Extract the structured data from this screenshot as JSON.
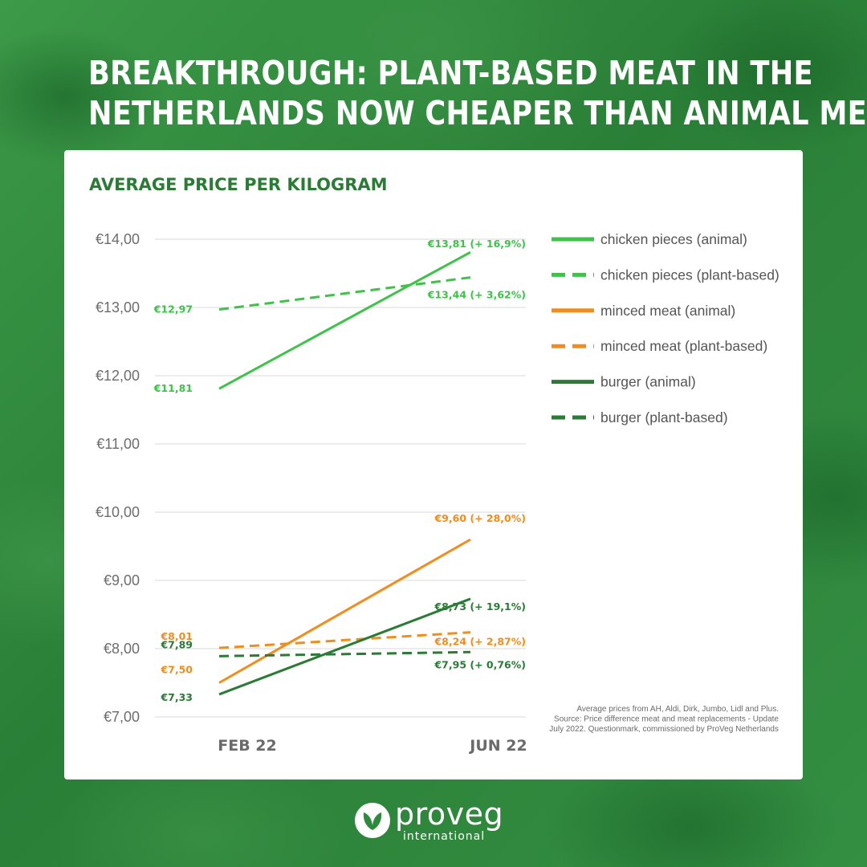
{
  "headline": {
    "line1": "BREAKTHROUGH: PLANT-BASED MEAT IN THE",
    "line2": "NETHERLANDS NOW CHEAPER THAN ANIMAL MEAT"
  },
  "colors": {
    "light_green": "#3ec24a",
    "orange": "#f28c1c",
    "dark_green": "#2b7a35"
  },
  "chart_data": {
    "type": "line",
    "title": "AVERAGE PRICE PER KILOGRAM",
    "categories": [
      "FEB 22",
      "JUN 22"
    ],
    "ylim": [
      7,
      14
    ],
    "yticks": [
      "€7,00",
      "€8,00",
      "€9,00",
      "€10,00",
      "€11,00",
      "€12,00",
      "€13,00",
      "€14,00"
    ],
    "grid": true,
    "legend_position": "right",
    "series": [
      {
        "name": "chicken pieces (animal)",
        "color": "#3ec24a",
        "dashed": false,
        "values": [
          11.81,
          13.81
        ],
        "labels": [
          "€11,81",
          "€13,81 (+ 16,9%)"
        ]
      },
      {
        "name": "chicken pieces (plant-based)",
        "color": "#3ec24a",
        "dashed": true,
        "values": [
          12.97,
          13.44
        ],
        "labels": [
          "€12,97",
          "€13,44 (+ 3,62%)"
        ]
      },
      {
        "name": "minced meat (animal)",
        "color": "#f28c1c",
        "dashed": false,
        "values": [
          7.5,
          9.6
        ],
        "labels": [
          "€7,50",
          "€9,60 (+ 28,0%)"
        ]
      },
      {
        "name": "minced meat (plant-based)",
        "color": "#f28c1c",
        "dashed": true,
        "values": [
          8.01,
          8.24
        ],
        "labels": [
          "€8,01",
          "€8,24 (+ 2,87%)"
        ]
      },
      {
        "name": "burger (animal)",
        "color": "#2b7a35",
        "dashed": false,
        "values": [
          7.33,
          8.73
        ],
        "labels": [
          "€7,33",
          "€8,73 (+ 19,1%)"
        ]
      },
      {
        "name": "burger (plant-based)",
        "color": "#2b7a35",
        "dashed": true,
        "values": [
          7.89,
          7.95
        ],
        "labels": [
          "€7,89",
          "€7,95 (+ 0,76%)"
        ]
      }
    ],
    "source": [
      "Average prices from AH, Aldi, Dirk, Jumbo,  Lidl and Plus.",
      "Source: Price difference meat and meat replacements - Update",
      "July 2022. Questionmark, commissioned by ProVeg Netherlands"
    ]
  },
  "logo": {
    "word": "proveg",
    "sub": "international"
  }
}
